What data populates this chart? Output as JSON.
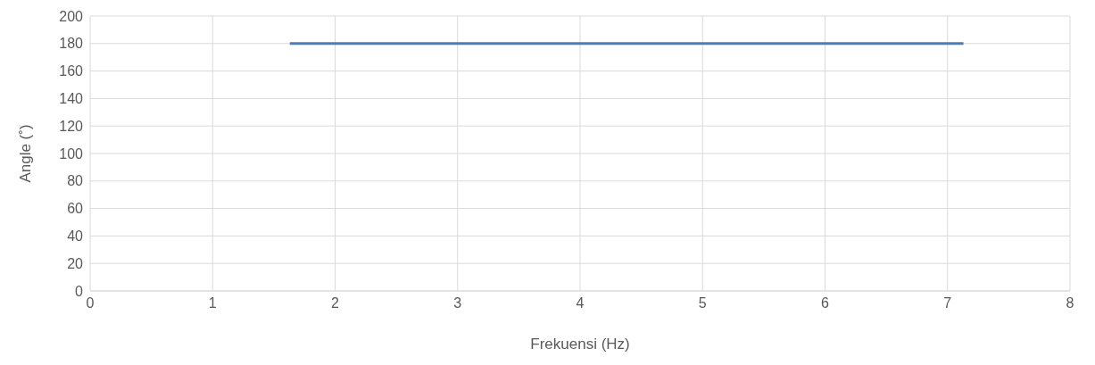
{
  "chart_data": {
    "type": "line",
    "xlabel": "Frekuensi (Hz)",
    "ylabel": "Angle (˚)",
    "series": [
      {
        "color": "#4a7ebb",
        "x": [
          1.63,
          7.13
        ],
        "values": [
          180,
          180
        ]
      }
    ],
    "xlim": [
      0,
      8
    ],
    "xticks": [
      0,
      1,
      2,
      3,
      4,
      5,
      6,
      7,
      8
    ],
    "ylim": [
      0,
      200
    ],
    "yticks": [
      0,
      20,
      40,
      60,
      80,
      100,
      120,
      140,
      160,
      180,
      200
    ],
    "grid": true,
    "marker": "none",
    "line_style": "solid"
  }
}
